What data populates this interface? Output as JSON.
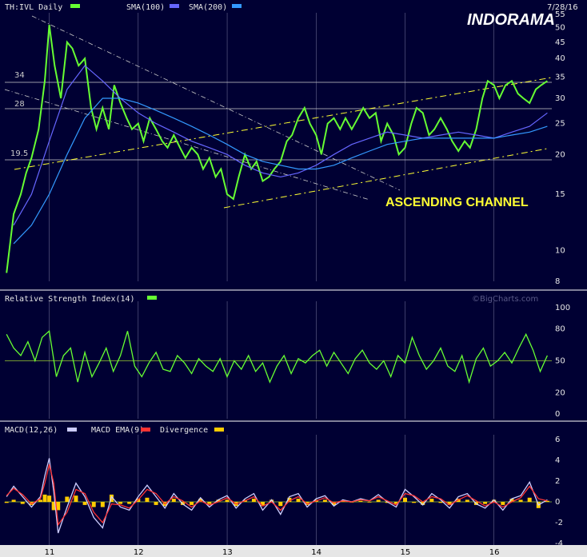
{
  "header": {
    "ticker_label": "TH:IVL Daily",
    "sma100_label": "SMA(100)",
    "sma200_label": "SMA(200)",
    "date": "7/28/16",
    "logo": "INDORAMA"
  },
  "colors": {
    "background": "#000033",
    "price": "#66ff33",
    "sma100": "#6666ff",
    "sma200": "#3399ff",
    "trendline": "#ffff33",
    "grid": "#ffffff",
    "rsi": "#66ff33",
    "macd": "#ccccff",
    "macd_ema": "#ff3333",
    "divergence": "#ffcc00",
    "xaxis_band": "#e6e6e6"
  },
  "annotations": {
    "levels": [
      "34",
      "28",
      "19.5"
    ],
    "channel_label": "ASCENDING CHANNEL",
    "watermark": "©BigCharts.com"
  },
  "rsi_panel": {
    "title": "Relative Strength Index(14)"
  },
  "macd_panel": {
    "title": "MACD(12,26)",
    "ema_label": "MACD EMA(9)",
    "div_label": "Divergence"
  },
  "chart_data": [
    {
      "type": "line",
      "title": "TH:IVL Daily",
      "yscale": "log",
      "ylim": [
        8,
        55
      ],
      "yticks": [
        8,
        10,
        15,
        20,
        25,
        30,
        35,
        40,
        45,
        50,
        55
      ],
      "xticks": [
        "11",
        "12",
        "13",
        "14",
        "15",
        "16"
      ],
      "xlim": [
        10.5,
        16.65
      ],
      "series": [
        {
          "name": "TH:IVL Daily",
          "x": [
            10.52,
            10.6,
            10.68,
            10.74,
            10.8,
            10.88,
            10.95,
            11.0,
            11.06,
            11.13,
            11.2,
            11.26,
            11.33,
            11.4,
            11.47,
            11.53,
            11.6,
            11.67,
            11.73,
            11.8,
            11.87,
            11.93,
            12.0,
            12.06,
            12.13,
            12.2,
            12.27,
            12.33,
            12.4,
            12.47,
            12.53,
            12.6,
            12.67,
            12.73,
            12.8,
            12.87,
            12.93,
            13.0,
            13.07,
            13.13,
            13.2,
            13.27,
            13.33,
            13.4,
            13.47,
            13.53,
            13.6,
            13.67,
            13.73,
            13.8,
            13.87,
            13.93,
            14.0,
            14.06,
            14.13,
            14.2,
            14.27,
            14.33,
            14.4,
            14.47,
            14.53,
            14.6,
            14.67,
            14.73,
            14.8,
            14.87,
            14.93,
            15.0,
            15.07,
            15.13,
            15.2,
            15.27,
            15.33,
            15.4,
            15.47,
            15.53,
            15.6,
            15.67,
            15.73,
            15.8,
            15.87,
            15.93,
            16.0,
            16.06,
            16.13,
            16.2,
            16.27,
            16.33,
            16.4,
            16.47,
            16.53,
            16.6
          ],
          "y": [
            8.5,
            13,
            15,
            17.5,
            19.5,
            24,
            34,
            51,
            38,
            30,
            45,
            43,
            38,
            40,
            28,
            24,
            28,
            24,
            33,
            29,
            26,
            24,
            25,
            22,
            26,
            24,
            22,
            21,
            23,
            21,
            19.5,
            21,
            20,
            18,
            19.5,
            17,
            18,
            15,
            14.5,
            17,
            20,
            18,
            19,
            16.5,
            17,
            18,
            19,
            22,
            23,
            26,
            28,
            25,
            23,
            20,
            25,
            26,
            24,
            26,
            24,
            26,
            28,
            26,
            27,
            22,
            25,
            23,
            20,
            21,
            25,
            28,
            27,
            23,
            24,
            26,
            24,
            22,
            20.5,
            22,
            21,
            24,
            30,
            34,
            33,
            30,
            33,
            34,
            31,
            30,
            29,
            32,
            33,
            34
          ]
        },
        {
          "name": "SMA(100)",
          "x": [
            10.6,
            10.8,
            11.0,
            11.2,
            11.4,
            11.6,
            11.8,
            12.0,
            12.2,
            12.4,
            12.6,
            12.8,
            13.0,
            13.2,
            13.4,
            13.6,
            13.8,
            14.0,
            14.2,
            14.4,
            14.6,
            14.8,
            15.0,
            15.2,
            15.4,
            15.6,
            15.8,
            16.0,
            16.2,
            16.4,
            16.6
          ],
          "y": [
            12,
            15,
            22,
            32,
            38,
            34,
            30,
            27,
            25,
            23.5,
            22,
            21,
            20,
            18.5,
            17.5,
            17,
            17.5,
            18.5,
            20,
            21.5,
            22.5,
            23.5,
            23,
            22.5,
            23,
            23.5,
            23,
            22.5,
            23.5,
            24.5,
            27
          ]
        },
        {
          "name": "SMA(200)",
          "x": [
            10.6,
            10.8,
            11.0,
            11.2,
            11.4,
            11.6,
            11.8,
            12.0,
            12.2,
            12.4,
            12.6,
            12.8,
            13.0,
            13.2,
            13.4,
            13.6,
            13.8,
            14.0,
            14.2,
            14.4,
            14.6,
            14.8,
            15.0,
            15.2,
            15.4,
            15.6,
            15.8,
            16.0,
            16.2,
            16.4,
            16.6
          ],
          "y": [
            10.5,
            12,
            15,
            20,
            26,
            30,
            30,
            29,
            27.5,
            26,
            24.5,
            23,
            21.5,
            20,
            19,
            18.5,
            18,
            18,
            18.5,
            19.5,
            20.5,
            21.5,
            22,
            22.5,
            22.5,
            22.5,
            22.5,
            22.5,
            23,
            23.5,
            24.5
          ]
        }
      ]
    },
    {
      "type": "line",
      "title": "Relative Strength Index(14)",
      "ylim": [
        0,
        100
      ],
      "yticks": [
        0,
        20,
        50,
        80,
        100
      ],
      "reference_line": 50,
      "series": [
        {
          "name": "RSI(14)",
          "x": [
            10.52,
            10.6,
            10.68,
            10.76,
            10.84,
            10.92,
            11.0,
            11.08,
            11.16,
            11.24,
            11.32,
            11.4,
            11.48,
            11.56,
            11.64,
            11.72,
            11.8,
            11.88,
            11.96,
            12.04,
            12.12,
            12.2,
            12.28,
            12.36,
            12.44,
            12.52,
            12.6,
            12.68,
            12.76,
            12.84,
            12.92,
            13.0,
            13.08,
            13.16,
            13.24,
            13.32,
            13.4,
            13.48,
            13.56,
            13.64,
            13.72,
            13.8,
            13.88,
            13.96,
            14.04,
            14.12,
            14.2,
            14.28,
            14.36,
            14.44,
            14.52,
            14.6,
            14.68,
            14.76,
            14.84,
            14.92,
            15.0,
            15.08,
            15.16,
            15.24,
            15.32,
            15.4,
            15.48,
            15.56,
            15.64,
            15.72,
            15.8,
            15.88,
            15.96,
            16.04,
            16.12,
            16.2,
            16.28,
            16.36,
            16.44,
            16.52,
            16.6
          ],
          "y": [
            75,
            62,
            55,
            68,
            50,
            72,
            78,
            35,
            55,
            62,
            30,
            58,
            35,
            48,
            62,
            40,
            55,
            78,
            45,
            35,
            48,
            58,
            42,
            40,
            55,
            48,
            38,
            52,
            45,
            40,
            52,
            35,
            50,
            42,
            55,
            40,
            48,
            30,
            45,
            55,
            38,
            52,
            48,
            55,
            60,
            45,
            58,
            48,
            38,
            52,
            60,
            48,
            42,
            50,
            35,
            55,
            48,
            72,
            55,
            42,
            50,
            62,
            45,
            40,
            55,
            30,
            52,
            62,
            45,
            50,
            58,
            48,
            62,
            75,
            60,
            40,
            55
          ]
        }
      ]
    },
    {
      "type": "line",
      "title": "MACD(12,26)",
      "ylim": [
        -4,
        6
      ],
      "yticks": [
        -4,
        -2,
        0,
        2,
        4,
        6
      ],
      "series": [
        {
          "name": "MACD(12,26)",
          "x": [
            10.52,
            10.6,
            10.7,
            10.8,
            10.9,
            10.95,
            11.0,
            11.05,
            11.1,
            11.2,
            11.3,
            11.4,
            11.5,
            11.6,
            11.7,
            11.8,
            11.9,
            12.0,
            12.1,
            12.2,
            12.3,
            12.4,
            12.5,
            12.6,
            12.7,
            12.8,
            12.9,
            13.0,
            13.1,
            13.2,
            13.3,
            13.4,
            13.5,
            13.6,
            13.7,
            13.8,
            13.9,
            14.0,
            14.1,
            14.2,
            14.3,
            14.4,
            14.5,
            14.6,
            14.7,
            14.8,
            14.9,
            15.0,
            15.1,
            15.2,
            15.3,
            15.4,
            15.5,
            15.6,
            15.7,
            15.8,
            15.9,
            16.0,
            16.1,
            16.2,
            16.3,
            16.4,
            16.5,
            16.6
          ],
          "y": [
            0.5,
            1.5,
            0.5,
            -0.5,
            0.5,
            2.5,
            4.2,
            1.0,
            -3.0,
            -0.5,
            1.8,
            0.5,
            -1.5,
            -2.5,
            0.5,
            -0.5,
            -0.8,
            0.5,
            1.6,
            0.5,
            -0.6,
            0.8,
            -0.2,
            -0.8,
            0.4,
            -0.5,
            0.2,
            0.6,
            -0.6,
            0.3,
            0.8,
            -0.8,
            0.2,
            -1.2,
            0.5,
            0.8,
            -0.5,
            0.3,
            0.6,
            -0.4,
            0.2,
            0.0,
            0.3,
            0.1,
            0.7,
            0.0,
            -0.5,
            1.2,
            0.5,
            -0.3,
            0.8,
            0.2,
            -0.6,
            0.5,
            0.8,
            -0.2,
            -0.6,
            0.2,
            -0.8,
            0.3,
            0.6,
            1.9,
            -0.3,
            0.2
          ]
        },
        {
          "name": "MACD EMA(9)",
          "x": [
            10.52,
            10.6,
            10.7,
            10.8,
            10.9,
            10.95,
            11.0,
            11.05,
            11.1,
            11.2,
            11.3,
            11.4,
            11.5,
            11.6,
            11.7,
            11.8,
            11.9,
            12.0,
            12.1,
            12.2,
            12.3,
            12.4,
            12.5,
            12.6,
            12.7,
            12.8,
            12.9,
            13.0,
            13.1,
            13.2,
            13.3,
            13.4,
            13.5,
            13.6,
            13.7,
            13.8,
            13.9,
            14.0,
            14.1,
            14.2,
            14.3,
            14.4,
            14.5,
            14.6,
            14.7,
            14.8,
            14.9,
            15.0,
            15.1,
            15.2,
            15.3,
            15.4,
            15.5,
            15.6,
            15.7,
            15.8,
            15.9,
            16.0,
            16.1,
            16.2,
            16.3,
            16.4,
            16.5,
            16.6
          ],
          "y": [
            0.6,
            1.3,
            0.7,
            -0.2,
            0.3,
            1.8,
            3.6,
            1.8,
            -2.2,
            -1.0,
            1.2,
            0.8,
            -1.0,
            -2.0,
            -0.2,
            -0.3,
            -0.6,
            0.2,
            1.2,
            0.8,
            -0.2,
            0.5,
            0.1,
            -0.5,
            0.1,
            -0.3,
            0.0,
            0.4,
            -0.2,
            0.1,
            0.5,
            -0.4,
            0.0,
            -0.8,
            0.1,
            0.5,
            -0.2,
            0.1,
            0.4,
            -0.1,
            0.1,
            0.0,
            0.2,
            0.1,
            0.5,
            0.1,
            -0.3,
            0.8,
            0.6,
            0.0,
            0.5,
            0.3,
            -0.3,
            0.2,
            0.6,
            0.1,
            -0.4,
            0.0,
            -0.5,
            0.0,
            0.4,
            1.5,
            0.3,
            0.1
          ]
        },
        {
          "name": "Divergence",
          "type": "bar",
          "x": [
            10.52,
            10.6,
            10.7,
            10.8,
            10.9,
            10.95,
            11.0,
            11.05,
            11.1,
            11.2,
            11.3,
            11.4,
            11.5,
            11.6,
            11.7,
            11.8,
            11.9,
            12.0,
            12.1,
            12.2,
            12.3,
            12.4,
            12.5,
            12.6,
            12.7,
            12.8,
            12.9,
            13.0,
            13.1,
            13.2,
            13.3,
            13.4,
            13.5,
            13.6,
            13.7,
            13.8,
            13.9,
            14.0,
            14.1,
            14.2,
            14.3,
            14.4,
            14.5,
            14.6,
            14.7,
            14.8,
            14.9,
            15.0,
            15.1,
            15.2,
            15.3,
            15.4,
            15.5,
            15.6,
            15.7,
            15.8,
            15.9,
            16.0,
            16.1,
            16.2,
            16.3,
            16.4,
            16.5,
            16.6
          ],
          "y": [
            -0.1,
            0.2,
            -0.2,
            -0.3,
            0.2,
            0.7,
            0.6,
            -0.8,
            -0.8,
            0.5,
            0.6,
            -0.3,
            -0.5,
            -0.5,
            0.7,
            -0.2,
            -0.2,
            0.3,
            0.4,
            -0.3,
            -0.4,
            0.3,
            -0.3,
            -0.3,
            0.3,
            -0.2,
            0.2,
            0.2,
            -0.4,
            0.2,
            0.3,
            -0.4,
            0.2,
            -0.4,
            0.4,
            0.3,
            -0.3,
            0.2,
            0.2,
            -0.3,
            0.1,
            0.0,
            0.1,
            0.0,
            0.2,
            -0.1,
            -0.2,
            0.4,
            -0.1,
            -0.3,
            0.3,
            -0.1,
            -0.3,
            0.3,
            0.2,
            -0.3,
            -0.2,
            0.2,
            -0.3,
            0.3,
            0.2,
            0.4,
            -0.6,
            0.1
          ]
        }
      ]
    }
  ]
}
